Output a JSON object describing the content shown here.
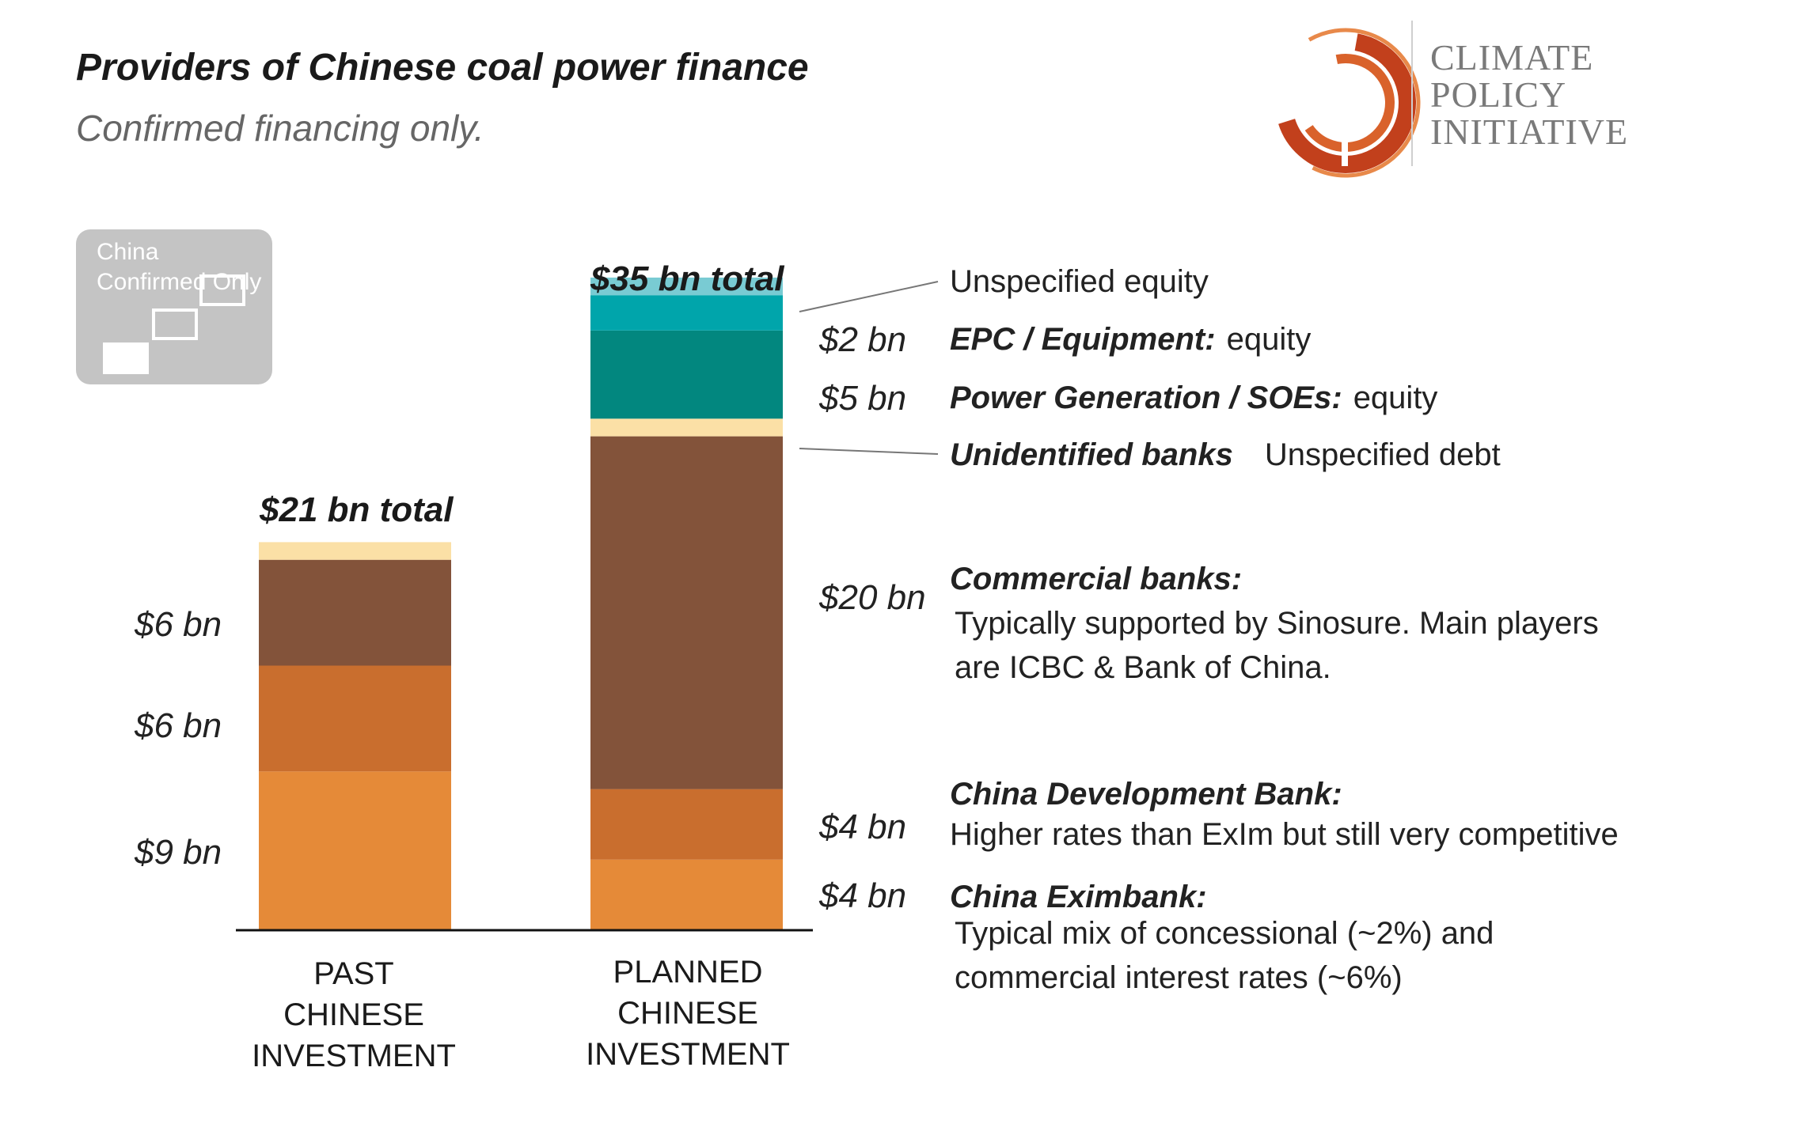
{
  "header": {
    "title": "Providers of Chinese coal power finance",
    "subtitle": "Confirmed financing only."
  },
  "badge": {
    "text": "China Confirmed Only"
  },
  "logo": {
    "line1": "CLIMATE",
    "line2": "POLICY",
    "line3": "INITIATIVE",
    "colors": [
      "#c2401c",
      "#d9622b",
      "#e8894a"
    ]
  },
  "chart_data": {
    "type": "bar",
    "stacked": true,
    "categories": [
      "PAST CHINESE INVESTMENT",
      "PLANNED CHINESE INVESTMENT"
    ],
    "totals": [
      "$21 bn total",
      "$35 bn total"
    ],
    "series": [
      {
        "name": "China Eximbank",
        "color": "#e58a38",
        "values": [
          9,
          4
        ]
      },
      {
        "name": "China Development Bank",
        "color": "#c96e2e",
        "values": [
          6,
          4
        ]
      },
      {
        "name": "Commercial banks",
        "color": "#83533a",
        "values": [
          6,
          20
        ]
      },
      {
        "name": "Unidentified banks",
        "color": "#fbe0a6",
        "values": [
          1,
          1
        ]
      },
      {
        "name": "Power Generation / SOEs",
        "color": "#02877f",
        "values": [
          0,
          5
        ]
      },
      {
        "name": "EPC / Equipment",
        "color": "#00a5ab",
        "values": [
          0,
          2
        ]
      },
      {
        "name": "Unspecified equity",
        "color": "#79cbd3",
        "values": [
          0,
          1
        ]
      }
    ],
    "value_labels": {
      "past": [
        "$9 bn",
        "$6 bn",
        "$6 bn"
      ],
      "planned": [
        "$4 bn",
        "$4 bn",
        "$20 bn",
        "$5 bn",
        "$2 bn"
      ]
    }
  },
  "annotations": {
    "unspecified_equity": "Unspecified equity",
    "epc_label": "EPC / Equipment:",
    "epc_type": "equity",
    "power_label": "Power Generation / SOEs:",
    "power_type": "equity",
    "unid_label": "Unidentified banks",
    "unid_type": "Unspecified debt",
    "commercial_label": "Commercial banks:",
    "commercial_desc_1": "Typically supported by Sinosure. Main players",
    "commercial_desc_2": "are ICBC & Bank of China.",
    "cdb_label": "China Development Bank:",
    "cdb_desc": "Higher rates than ExIm but still very competitive",
    "exim_label": "China Eximbank:",
    "exim_desc_1": "Typical mix of concessional (~2%) and",
    "exim_desc_2": "commercial interest rates (~6%)"
  }
}
